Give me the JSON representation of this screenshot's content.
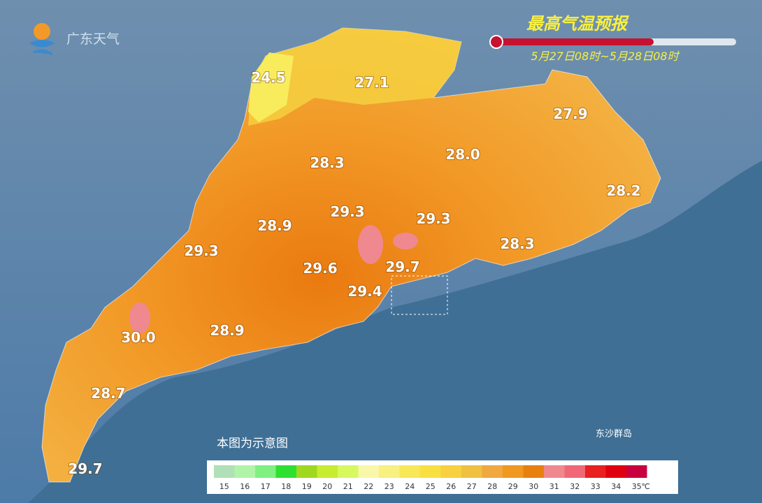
{
  "logo": {
    "text": "广东天气"
  },
  "header": {
    "title": "最高气温预报",
    "subtitle": "5月27日08时~5月28日08时"
  },
  "labels": [
    {
      "text": "24.5"
    },
    {
      "text": "27.1"
    },
    {
      "text": "27.9"
    },
    {
      "text": "28.3"
    },
    {
      "text": "28.0"
    },
    {
      "text": "28.2"
    },
    {
      "text": "29.3"
    },
    {
      "text": "29.3"
    },
    {
      "text": "28.9"
    },
    {
      "text": "29.3"
    },
    {
      "text": "28.3"
    },
    {
      "text": "29.6"
    },
    {
      "text": "29.7"
    },
    {
      "text": "29.4"
    },
    {
      "text": "30.0"
    },
    {
      "text": "28.9"
    },
    {
      "text": "28.7"
    },
    {
      "text": "29.7"
    }
  ],
  "island": "东沙群岛",
  "note": "本图为示意图",
  "legend": {
    "unit": "℃",
    "items": [
      {
        "value": 15,
        "color": "#b0e0b8"
      },
      {
        "value": 16,
        "color": "#b0f4a8"
      },
      {
        "value": 17,
        "color": "#80f080"
      },
      {
        "value": 18,
        "color": "#30e030"
      },
      {
        "value": 19,
        "color": "#a0d820"
      },
      {
        "value": 20,
        "color": "#c8ec30"
      },
      {
        "value": 21,
        "color": "#d8f860"
      },
      {
        "value": 22,
        "color": "#f8f8a8"
      },
      {
        "value": 23,
        "color": "#f8f080"
      },
      {
        "value": 24,
        "color": "#f8e858"
      },
      {
        "value": 25,
        "color": "#f8e040"
      },
      {
        "value": 26,
        "color": "#f8d040"
      },
      {
        "value": 27,
        "color": "#f0c040"
      },
      {
        "value": 28,
        "color": "#f0a840"
      },
      {
        "value": 29,
        "color": "#f09820"
      },
      {
        "value": 30,
        "color": "#e88010"
      },
      {
        "value": 31,
        "color": "#f08890"
      },
      {
        "value": 32,
        "color": "#f06878"
      },
      {
        "value": 33,
        "color": "#e82020"
      },
      {
        "value": 34,
        "color": "#e00010"
      },
      {
        "value": 35,
        "color": "#c80040"
      }
    ]
  }
}
